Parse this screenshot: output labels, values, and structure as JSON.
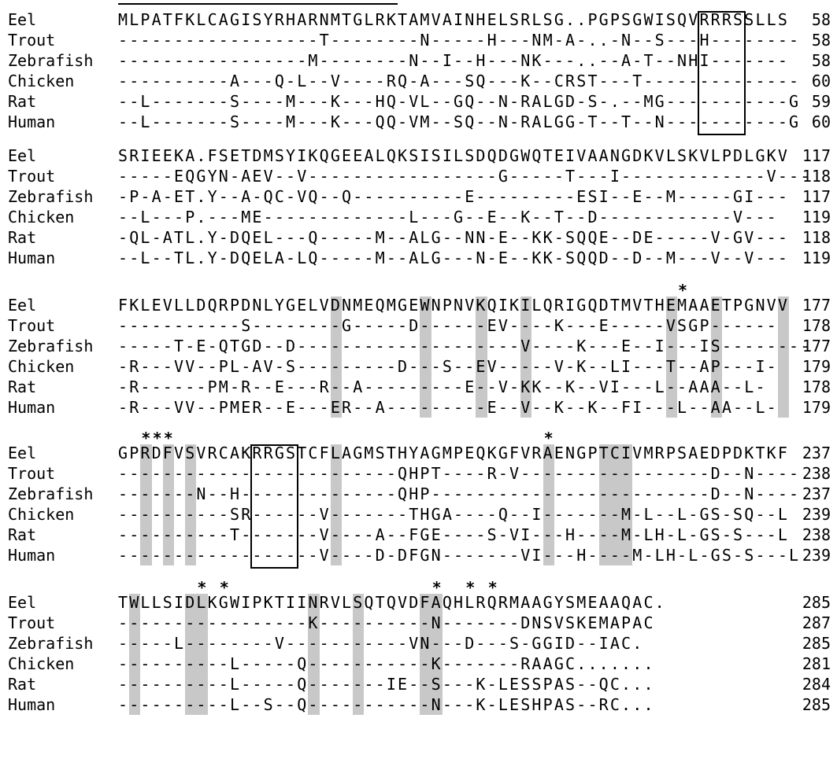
{
  "blocks": [
    {
      "rows": [
        {
          "species": "Eel",
          "seq": "MLPATFKLCAGISYRHARNMTGLRKTAMVAINHELSRLSG..PGPSGWISQVRRRSSLLS",
          "num": "58"
        },
        {
          "species": "Trout",
          "seq": "------------------T--------N-----H---NM-A-..-N--S---H--------",
          "num": "58"
        },
        {
          "species": "Zebrafish",
          "seq": "-----------------M--------N--I--H---NK---..--A-T--NHI-------",
          "num": "58"
        },
        {
          "species": "Chicken",
          "seq": "----------A---Q-L--V----RQ-A---SQ---K--CRST---T--------------",
          "num": "60"
        },
        {
          "species": "Rat",
          "seq": "--L-------S----M---K---HQ-VL--GQ--N-RALGD-S-.--MG-----------G",
          "num": "59"
        },
        {
          "species": "Human",
          "seq": "--L-------S----M---K---QQ-VM--SQ--N-RALGG-T--T--N-----------G",
          "num": "60"
        }
      ]
    },
    {
      "rows": [
        {
          "species": "Eel",
          "seq": "SRIEEKA.FSETDMSYIKQGEEALQKSISILSDQDGWQTEIVAANGDKVLSKVLPDLGKV",
          "num": "117"
        },
        {
          "species": "Trout",
          "seq": "-----EQGYN-AEV--V-----------------G-----T---I-------------V---",
          "num": "118"
        },
        {
          "species": "Zebrafish",
          "seq": "-P-A-ET.Y--A-QC-VQ--Q----------E---------ESI--E--M-----GI---",
          "num": "117"
        },
        {
          "species": "Chicken",
          "seq": "--L---P.---ME-------------L---G--E--K--T--D------------V---",
          "num": "119"
        },
        {
          "species": "Rat",
          "seq": "-QL-ATL.Y-DQEL---Q-----M--ALG--NN-E--KK-SQQE--DE-----V-GV---",
          "num": "118"
        },
        {
          "species": "Human",
          "seq": "--L--TL.Y-DQELA-LQ-----M--ALG---N-E--KK-SQQD--D--M---V--V---",
          "num": "119"
        }
      ]
    },
    {
      "rows": [
        {
          "species": "Eel",
          "seq": "FKLEVLLDQRPDNLYGELVDNMEQMGEWNPNVKQIKILQRIGQDTMVTHEMAAETPGNVV",
          "num": "177"
        },
        {
          "species": "Trout",
          "seq": "-----------S--------G-----D------EV----K---E-----VSGP------",
          "num": "178"
        },
        {
          "species": "Zebrafish",
          "seq": "-----T-E-QTGD--D--------------------V----K---E--I---IS--------",
          "num": "177"
        },
        {
          "species": "Chicken",
          "seq": "-R---VV--PL-AV-S---------D---S--EV-----V-K--LI---T--AP---I-",
          "num": "179"
        },
        {
          "species": "Rat",
          "seq": "-R------PM-R--E---R--A---------E--V-KK--K--VI---L--AAA--L-",
          "num": "178"
        },
        {
          "species": "Human",
          "seq": "-R---VV--PMER--E---ER--A---------E--V--K--K--FI---L--AA--L-",
          "num": "179"
        }
      ]
    },
    {
      "rows": [
        {
          "species": "Eel",
          "seq": "GPRDFVSVRCAKRRGSTCFLAGMSTHYAGMPEQKGFVRAENGPTCIVMRPSAEDPDKTKF",
          "num": "237"
        },
        {
          "species": "Trout",
          "seq": "-------------------------QHPT----R-V-----------------D--N----",
          "num": "238"
        },
        {
          "species": "Zebrafish",
          "seq": "-------N--H--------------QHP-------------------------D--N----",
          "num": "237"
        },
        {
          "species": "Chicken",
          "seq": "----------SR------V-------THGA----Q--I-------M-L--L-GS-SQ--L",
          "num": "239"
        },
        {
          "species": "Rat",
          "seq": "----------T-------V----A--FGE----S-VI---H----M-LH-L-GS-S---L",
          "num": "238"
        },
        {
          "species": "Human",
          "seq": "------------------V----D-DFGN-------VI---H----M-LH-L-GS-S---L",
          "num": "239"
        }
      ]
    },
    {
      "rows": [
        {
          "species": "Eel",
          "seq": "TWLLSIDLKGWIPKTIINRVLSQTQVDFAQHLRQRMAAGYSMEAAQAC.",
          "num": "285"
        },
        {
          "species": "Trout",
          "seq": "-----------------K----------N-------DNSVSKEMAPAC",
          "num": "287"
        },
        {
          "species": "Zebrafish",
          "seq": "-----L--------V-----------VN---D---S-GGID--IAC.",
          "num": "285"
        },
        {
          "species": "Chicken",
          "seq": "----------L-----Q-----------K-------RAAGC.......",
          "num": "281"
        },
        {
          "species": "Rat",
          "seq": "----------L-----Q-------IE--S---K-LESSPAS--QC...",
          "num": "284"
        },
        {
          "species": "Human",
          "seq": "----------L--S--Q-----------N---K-LESHPAS--RC...",
          "num": "285"
        }
      ]
    }
  ],
  "conserved_positions": [
    {
      "block": 2,
      "cols": [
        19,
        27,
        32,
        36,
        49,
        53,
        59
      ]
    },
    {
      "block": 3,
      "cols": [
        2,
        4,
        6,
        19,
        38,
        43,
        44,
        45
      ]
    },
    {
      "block": 4,
      "cols": [
        1,
        6,
        7,
        17,
        21,
        27,
        28
      ]
    }
  ],
  "boxed_motifs": [
    {
      "block": 0,
      "col_start": 52,
      "col_end": 55,
      "label": "RRSS"
    },
    {
      "block": 3,
      "col_start": 12,
      "col_end": 15,
      "label": "RRGS"
    }
  ],
  "overlined_region": {
    "block": 0,
    "col_start": 0,
    "col_end": 24
  },
  "asterisks": [
    {
      "block": 2,
      "col": 50,
      "symbol": "*"
    },
    {
      "block": 3,
      "col": 2,
      "symbol": "*"
    },
    {
      "block": 3,
      "col": 3,
      "symbol": "*"
    },
    {
      "block": 3,
      "col": 4,
      "symbol": "*"
    },
    {
      "block": 3,
      "col": 38,
      "symbol": "*"
    },
    {
      "block": 4,
      "col": 7,
      "symbol": "*"
    },
    {
      "block": 4,
      "col": 9,
      "symbol": "*"
    },
    {
      "block": 4,
      "col": 28,
      "symbol": "*"
    },
    {
      "block": 4,
      "col": 31,
      "symbol": "*"
    },
    {
      "block": 4,
      "col": 33,
      "symbol": "*"
    }
  ],
  "colors": {
    "highlight": "#c8c8c8",
    "text": "#000000",
    "background": "#ffffff"
  }
}
